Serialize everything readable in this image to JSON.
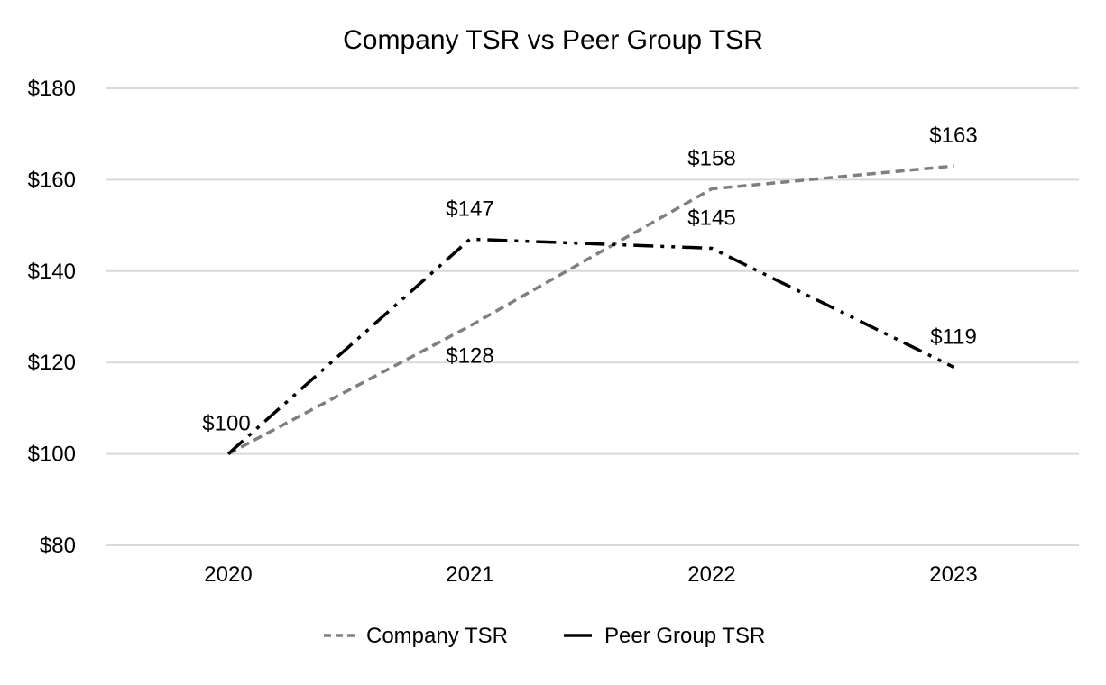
{
  "chart_data": {
    "type": "line",
    "title": "Company TSR vs Peer Group TSR",
    "categories": [
      "2020",
      "2021",
      "2022",
      "2023"
    ],
    "ylim": [
      80,
      180
    ],
    "yticks": [
      80,
      100,
      120,
      140,
      160,
      180
    ],
    "ytick_labels": [
      "$80",
      "$100",
      "$120",
      "$140",
      "$160",
      "$180"
    ],
    "grid": true,
    "legend_position": "bottom",
    "series": [
      {
        "name": "Company TSR",
        "values": [
          100,
          128,
          158,
          163
        ],
        "labels": [
          "",
          "$128",
          "$158",
          "$163"
        ],
        "color": "#7f7f7f",
        "style": "dashed"
      },
      {
        "name": "Peer Group TSR",
        "values": [
          100,
          147,
          145,
          119
        ],
        "labels": [
          "$100",
          "$147",
          "$145",
          "$119"
        ],
        "color": "#000000",
        "style": "long-dash-dot-dot"
      }
    ]
  }
}
